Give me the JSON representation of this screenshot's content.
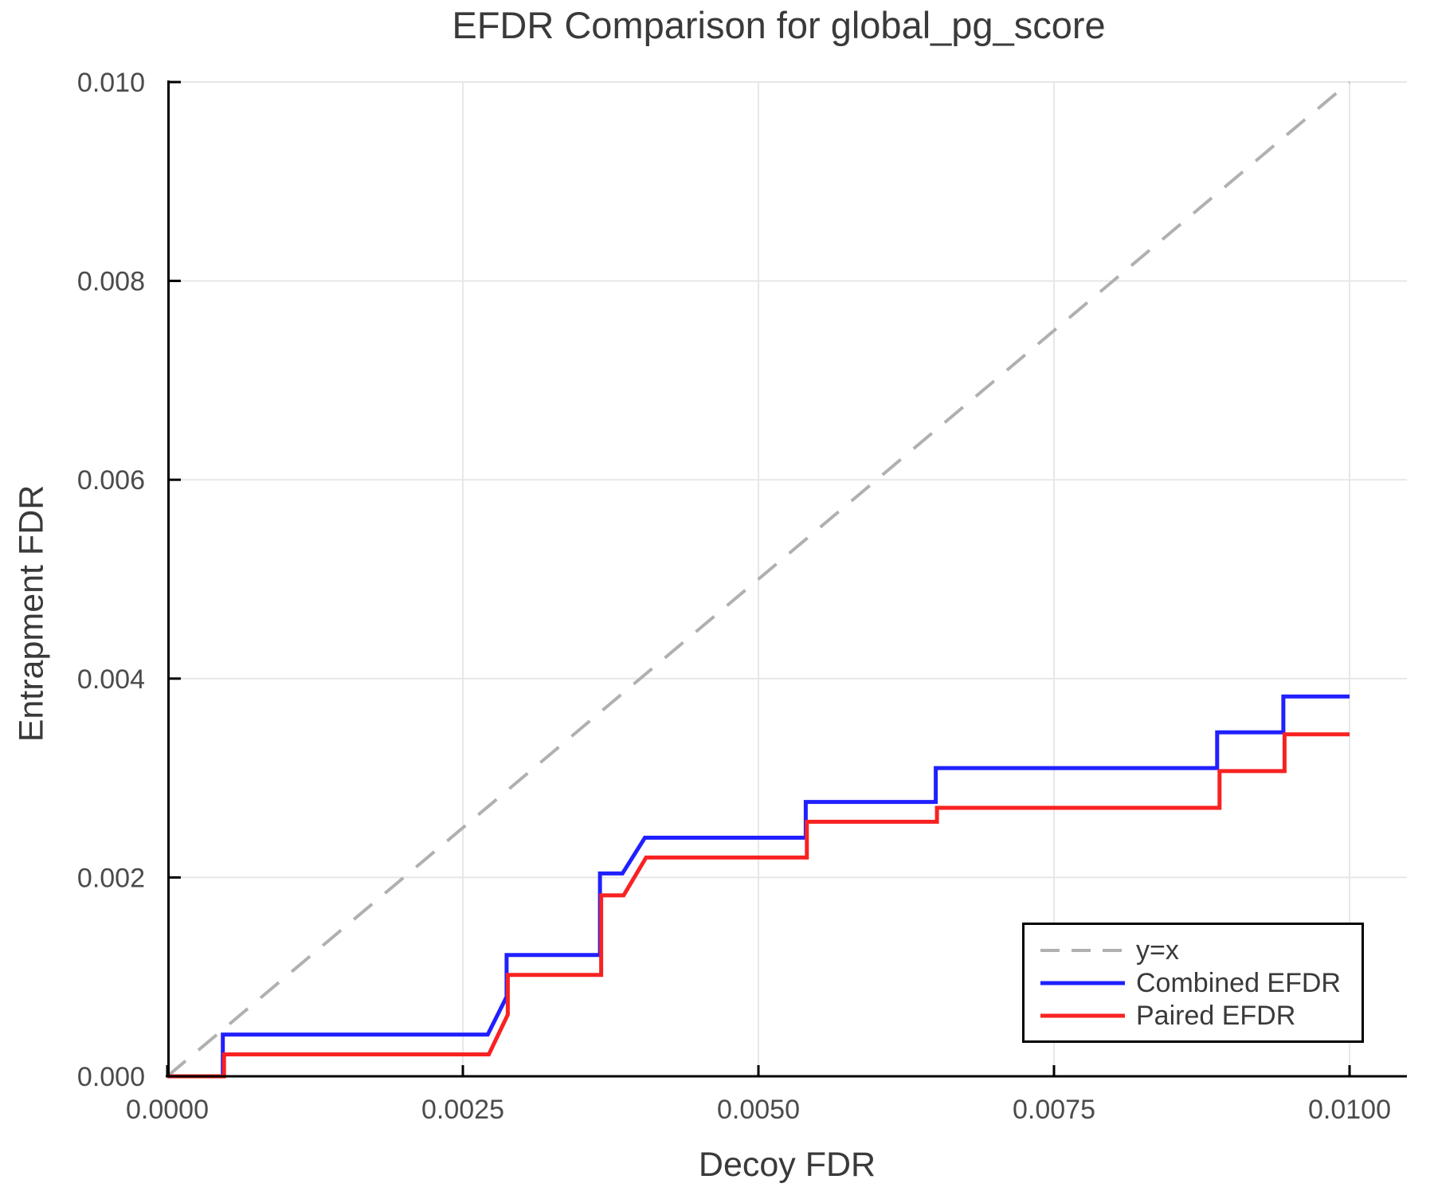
{
  "title": "EFDR Comparison for global_pg_score",
  "x_axis": {
    "label": "Decoy FDR",
    "tick_labels": [
      "0.0000",
      "0.0025",
      "0.0050",
      "0.0075",
      "0.0100"
    ],
    "tick_values": [
      0,
      0.0025,
      0.005,
      0.0075,
      0.01
    ]
  },
  "y_axis": {
    "label": "Entrapment FDR",
    "tick_labels": [
      "0.000",
      "0.002",
      "0.004",
      "0.006",
      "0.008",
      "0.010"
    ],
    "tick_values": [
      0,
      0.002,
      0.004,
      0.006,
      0.008,
      0.01
    ]
  },
  "legend": {
    "items": [
      {
        "label": "y=x",
        "color": "#b0b0b0",
        "style": "dashed"
      },
      {
        "label": "Combined EFDR",
        "color": "#2020ff",
        "style": "solid"
      },
      {
        "label": "Paired EFDR",
        "color": "#f82222",
        "style": "solid"
      }
    ]
  },
  "colors": {
    "grid": "#e7e7e7",
    "spine": "#000000",
    "tick_text": "#4b4b4b",
    "title_text": "#3a3a3a",
    "identity": "#b0b0b0",
    "combined": "#2020ff",
    "paired": "#f82222"
  },
  "chart_data": {
    "type": "line",
    "title": "EFDR Comparison for global_pg_score",
    "xlabel": "Decoy FDR",
    "ylabel": "Entrapment FDR",
    "xlim": [
      0,
      0.01049
    ],
    "ylim": [
      0,
      0.01
    ],
    "grid": true,
    "legend_position": "lower right",
    "series": [
      {
        "name": "y=x",
        "style": "dashed",
        "color": "#b0b0b0",
        "points": [
          [
            0,
            0
          ],
          [
            0.01,
            0.01
          ]
        ]
      },
      {
        "name": "Combined EFDR",
        "style": "solid",
        "color": "#2020ff",
        "points": [
          [
            0,
            0
          ],
          [
            0.00047,
            0
          ],
          [
            0.00047,
            0.00042
          ],
          [
            0.00271,
            0.00042
          ],
          [
            0.00287,
            0.0008
          ],
          [
            0.00287,
            0.00122
          ],
          [
            0.00366,
            0.00122
          ],
          [
            0.00366,
            0.00204
          ],
          [
            0.00385,
            0.00204
          ],
          [
            0.00404,
            0.0024
          ],
          [
            0.0054,
            0.0024
          ],
          [
            0.0054,
            0.00276
          ],
          [
            0.0065,
            0.00276
          ],
          [
            0.0065,
            0.0031
          ],
          [
            0.00888,
            0.0031
          ],
          [
            0.00888,
            0.00346
          ],
          [
            0.00944,
            0.00346
          ],
          [
            0.00944,
            0.00382
          ],
          [
            0.01,
            0.00382
          ]
        ]
      },
      {
        "name": "Paired EFDR",
        "style": "solid",
        "color": "#f82222",
        "points": [
          [
            0,
            0
          ],
          [
            0.00048,
            0
          ],
          [
            0.00048,
            0.00022
          ],
          [
            0.00272,
            0.00022
          ],
          [
            0.00288,
            0.00062
          ],
          [
            0.00288,
            0.00102
          ],
          [
            0.00367,
            0.00102
          ],
          [
            0.00367,
            0.00182
          ],
          [
            0.00386,
            0.00182
          ],
          [
            0.00405,
            0.0022
          ],
          [
            0.00541,
            0.0022
          ],
          [
            0.00541,
            0.00256
          ],
          [
            0.00651,
            0.00256
          ],
          [
            0.00651,
            0.0027
          ],
          [
            0.0089,
            0.0027
          ],
          [
            0.0089,
            0.00307
          ],
          [
            0.00945,
            0.00307
          ],
          [
            0.00945,
            0.00344
          ],
          [
            0.01,
            0.00344
          ]
        ]
      }
    ]
  }
}
